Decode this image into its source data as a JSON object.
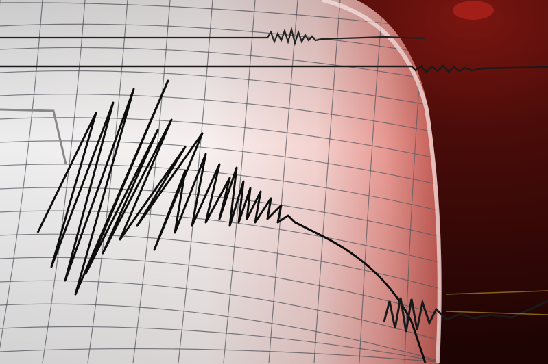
{
  "scene": {
    "subject": "seismograph-drum-with-trace",
    "colors": {
      "paper_light": "#f4f0ef",
      "paper_pink": "#f3c3c0",
      "background_dark_red": "#3a0a08",
      "glow_red": "#c0302a",
      "ink": "#111111",
      "grid": "#6a6a70"
    }
  }
}
